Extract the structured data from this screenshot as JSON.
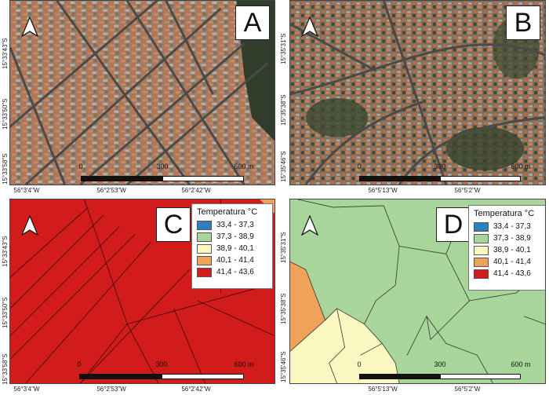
{
  "panels": {
    "A": {
      "letter": "A",
      "lat_labels": [
        "15°33'43\"S",
        "15°33'50\"S",
        "15°33'58\"S"
      ],
      "lon_labels": [
        "56°3'4\"W",
        "56°2'53\"W",
        "56°2'42\"W"
      ],
      "scale": [
        "0",
        "300",
        "600 m"
      ]
    },
    "B": {
      "letter": "B",
      "lat_labels": [
        "15°35'31\"S",
        "15°35'38\"S",
        "15°35'46\"S"
      ],
      "lon_labels": [
        "56°5'13\"W",
        "56°5'2\"W"
      ],
      "scale": [
        "0",
        "300",
        "600 m"
      ]
    },
    "C": {
      "letter": "C",
      "lat_labels": [
        "15°33'43\"S",
        "15°33'50\"S",
        "15°33'58\"S"
      ],
      "lon_labels": [
        "56°3'4\"W",
        "56°2'53\"W",
        "56°2'42\"W"
      ],
      "scale": [
        "0",
        "300",
        "600 m"
      ]
    },
    "D": {
      "letter": "D",
      "lat_labels": [
        "15°35'31\"S",
        "15°35'38\"S",
        "15°35'46\"S"
      ],
      "lon_labels": [
        "56°5'13\"W",
        "56°5'2\"W"
      ],
      "scale": [
        "0",
        "300",
        "600 m"
      ]
    }
  },
  "legend": {
    "title": "Temperatura °C",
    "classes": [
      {
        "label": "33,4 - 37,3",
        "color": "#2e7fc0"
      },
      {
        "label": "37,3 - 38,9",
        "color": "#a8d59a"
      },
      {
        "label": "38,9 - 40,1",
        "color": "#fbf7c0"
      },
      {
        "label": "40,1 - 41,4",
        "color": "#f0a15a"
      },
      {
        "label": "41,4 - 43,6",
        "color": "#d21c1c"
      }
    ]
  },
  "colors": {
    "panel_C_fill": "#d21c1c",
    "panel_D_fill": "#a8d59a"
  }
}
